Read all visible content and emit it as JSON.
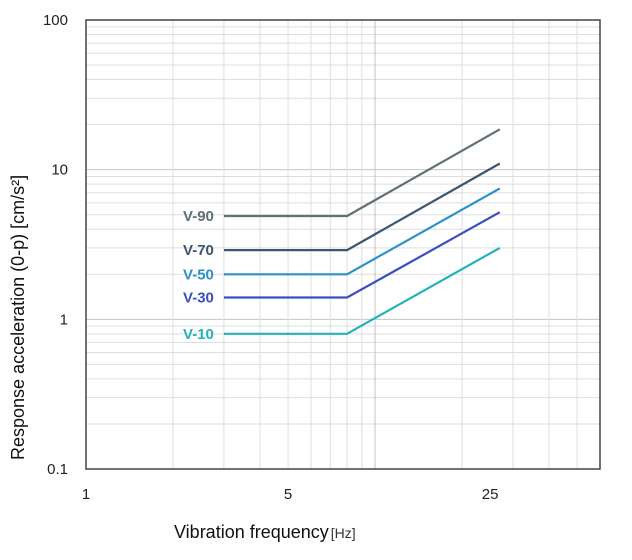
{
  "chart_data": {
    "type": "line",
    "title": "",
    "xlabel": "Vibration frequency",
    "xunit": "[Hz]",
    "ylabel": "Response acceleration (0-p) [cm/s²]",
    "xscale": "log",
    "yscale": "log",
    "xlim": [
      1,
      60
    ],
    "ylim": [
      0.1,
      100
    ],
    "xticks": [
      1,
      5,
      25
    ],
    "xtick_labels": [
      "1",
      "5",
      "25"
    ],
    "yticks": [
      0.1,
      1,
      10,
      100
    ],
    "ytick_labels": [
      "0.1",
      "1",
      "10",
      "100"
    ],
    "grid": true,
    "legend": "inline labels at left of lines",
    "series": [
      {
        "name": "V-90",
        "color": "#5f7076",
        "x": [
          3,
          8,
          27
        ],
        "y": [
          4.9,
          4.9,
          18.6
        ]
      },
      {
        "name": "V-70",
        "color": "#3c5670",
        "x": [
          3,
          8,
          27
        ],
        "y": [
          2.9,
          2.9,
          11.0
        ]
      },
      {
        "name": "V-50",
        "color": "#2a92c4",
        "x": [
          3,
          8,
          27
        ],
        "y": [
          2.0,
          2.0,
          7.5
        ]
      },
      {
        "name": "V-30",
        "color": "#3b4fc1",
        "x": [
          3,
          8,
          27
        ],
        "y": [
          1.4,
          1.4,
          5.2
        ]
      },
      {
        "name": "V-10",
        "color": "#23b2bb",
        "x": [
          3,
          8,
          27
        ],
        "y": [
          0.8,
          0.8,
          3.0
        ]
      }
    ]
  }
}
